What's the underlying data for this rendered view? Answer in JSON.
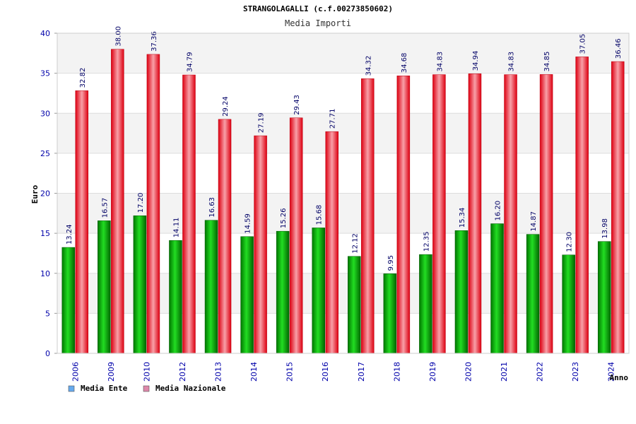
{
  "chart_data": {
    "type": "bar",
    "title": "STRANGOLAGALLI (c.f.00273850602)",
    "subtitle": "Media Importi",
    "ylabel": "Euro",
    "xlabel": "Anno",
    "ylim": [
      0,
      40
    ],
    "yticks": [
      0,
      5,
      10,
      15,
      20,
      25,
      30,
      35,
      40
    ],
    "categories": [
      "2006",
      "2009",
      "2010",
      "2012",
      "2013",
      "2014",
      "2015",
      "2016",
      "2017",
      "2018",
      "2019",
      "2020",
      "2021",
      "2022",
      "2023",
      "2024"
    ],
    "series": [
      {
        "name": "Media Ente",
        "color": "#00b000",
        "values": [
          13.24,
          16.57,
          17.2,
          14.11,
          16.63,
          14.59,
          15.26,
          15.68,
          12.12,
          9.95,
          12.35,
          15.34,
          16.2,
          14.87,
          12.3,
          13.98
        ],
        "labels": [
          "13.24",
          "16.57",
          "17.20",
          "14.11",
          "16.63",
          "14.59",
          "15.26",
          "15.68",
          "12.12",
          "9.95",
          "12.35",
          "15.34",
          "16.20",
          "14.87",
          "12.30",
          "13.98"
        ]
      },
      {
        "name": "Media Nazionale",
        "color": "#ee1122",
        "values": [
          32.82,
          38.0,
          37.36,
          34.79,
          29.24,
          27.19,
          29.43,
          27.71,
          34.32,
          34.68,
          34.83,
          34.94,
          34.83,
          34.85,
          37.05,
          36.46
        ],
        "labels": [
          "32.82",
          "38.00",
          "37.36",
          "34.79",
          "29.24",
          "27.19",
          "29.43",
          "27.71",
          "34.32",
          "34.68",
          "34.83",
          "34.94",
          "34.83",
          "34.85",
          "37.05",
          "36.46"
        ]
      }
    ],
    "legend": {
      "position": "bottom-left",
      "items": [
        {
          "label": "Media Ente",
          "color": "#66aaee"
        },
        {
          "label": "Media Nazionale",
          "color": "#dd88aa"
        }
      ]
    },
    "grid": true,
    "band_colors": [
      "#f3f3f3",
      "#ffffff"
    ]
  }
}
